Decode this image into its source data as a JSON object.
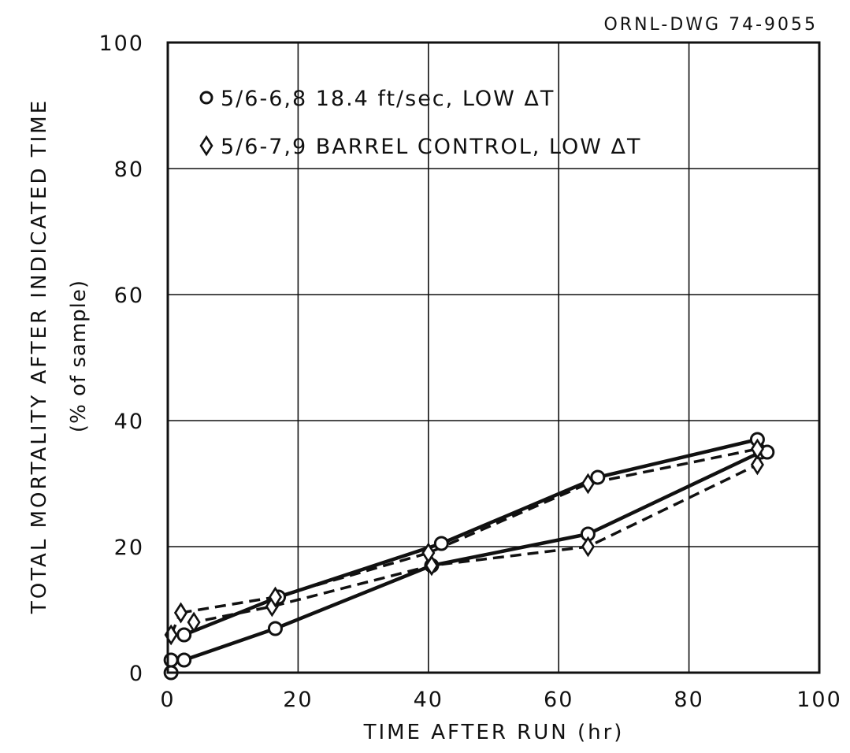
{
  "drawing_number": "ORNL-DWG 74-9055",
  "chart_data": {
    "type": "line",
    "title": "",
    "xlabel": "TIME AFTER RUN (hr)",
    "ylabel": "TOTAL MORTALITY AFTER INDICATED TIME",
    "ylabel_sub": "(% of sample)",
    "xlim": [
      0,
      100
    ],
    "ylim": [
      0,
      100
    ],
    "x_ticks": [
      0,
      20,
      40,
      60,
      80,
      100
    ],
    "y_ticks": [
      0,
      20,
      40,
      60,
      80,
      100
    ],
    "x_tick_labels": [
      "0",
      "20",
      "40",
      "60",
      "80",
      "100"
    ],
    "y_tick_labels": [
      "0",
      "20",
      "40",
      "60",
      "80",
      "100"
    ],
    "grid": true,
    "legend_position": "top-left",
    "legend": [
      {
        "symbol": "o",
        "text": "5/6-6,8  18.4 ft/sec, LOW ΔT"
      },
      {
        "symbol": "◊",
        "text": "5/6-7,9  BARREL CONTROL, LOW ΔT"
      }
    ],
    "series": [
      {
        "marker": "circle",
        "style": "solid",
        "points": [
          [
            0.5,
            0
          ],
          [
            0.5,
            2
          ],
          [
            2.5,
            2
          ],
          [
            16.5,
            7
          ],
          [
            40.5,
            17
          ],
          [
            64.5,
            22
          ],
          [
            91,
            35
          ]
        ]
      },
      {
        "marker": "circle",
        "style": "solid",
        "points": [
          [
            2.5,
            6
          ],
          [
            17,
            12
          ],
          [
            42,
            20.5
          ],
          [
            66,
            31
          ],
          [
            90.5,
            37
          ],
          [
            92,
            35
          ]
        ]
      },
      {
        "marker": "diamond",
        "style": "dashed",
        "points": [
          [
            0.5,
            6
          ],
          [
            2,
            9.5
          ],
          [
            4,
            8
          ],
          [
            16,
            10.5
          ],
          [
            40.5,
            17
          ],
          [
            64.5,
            20
          ],
          [
            90.5,
            33
          ]
        ]
      },
      {
        "marker": "diamond",
        "style": "dashed",
        "points": [
          [
            2,
            9.5
          ],
          [
            16.5,
            12
          ],
          [
            40,
            19
          ],
          [
            64.5,
            30
          ],
          [
            90.5,
            35.5
          ]
        ]
      }
    ]
  }
}
